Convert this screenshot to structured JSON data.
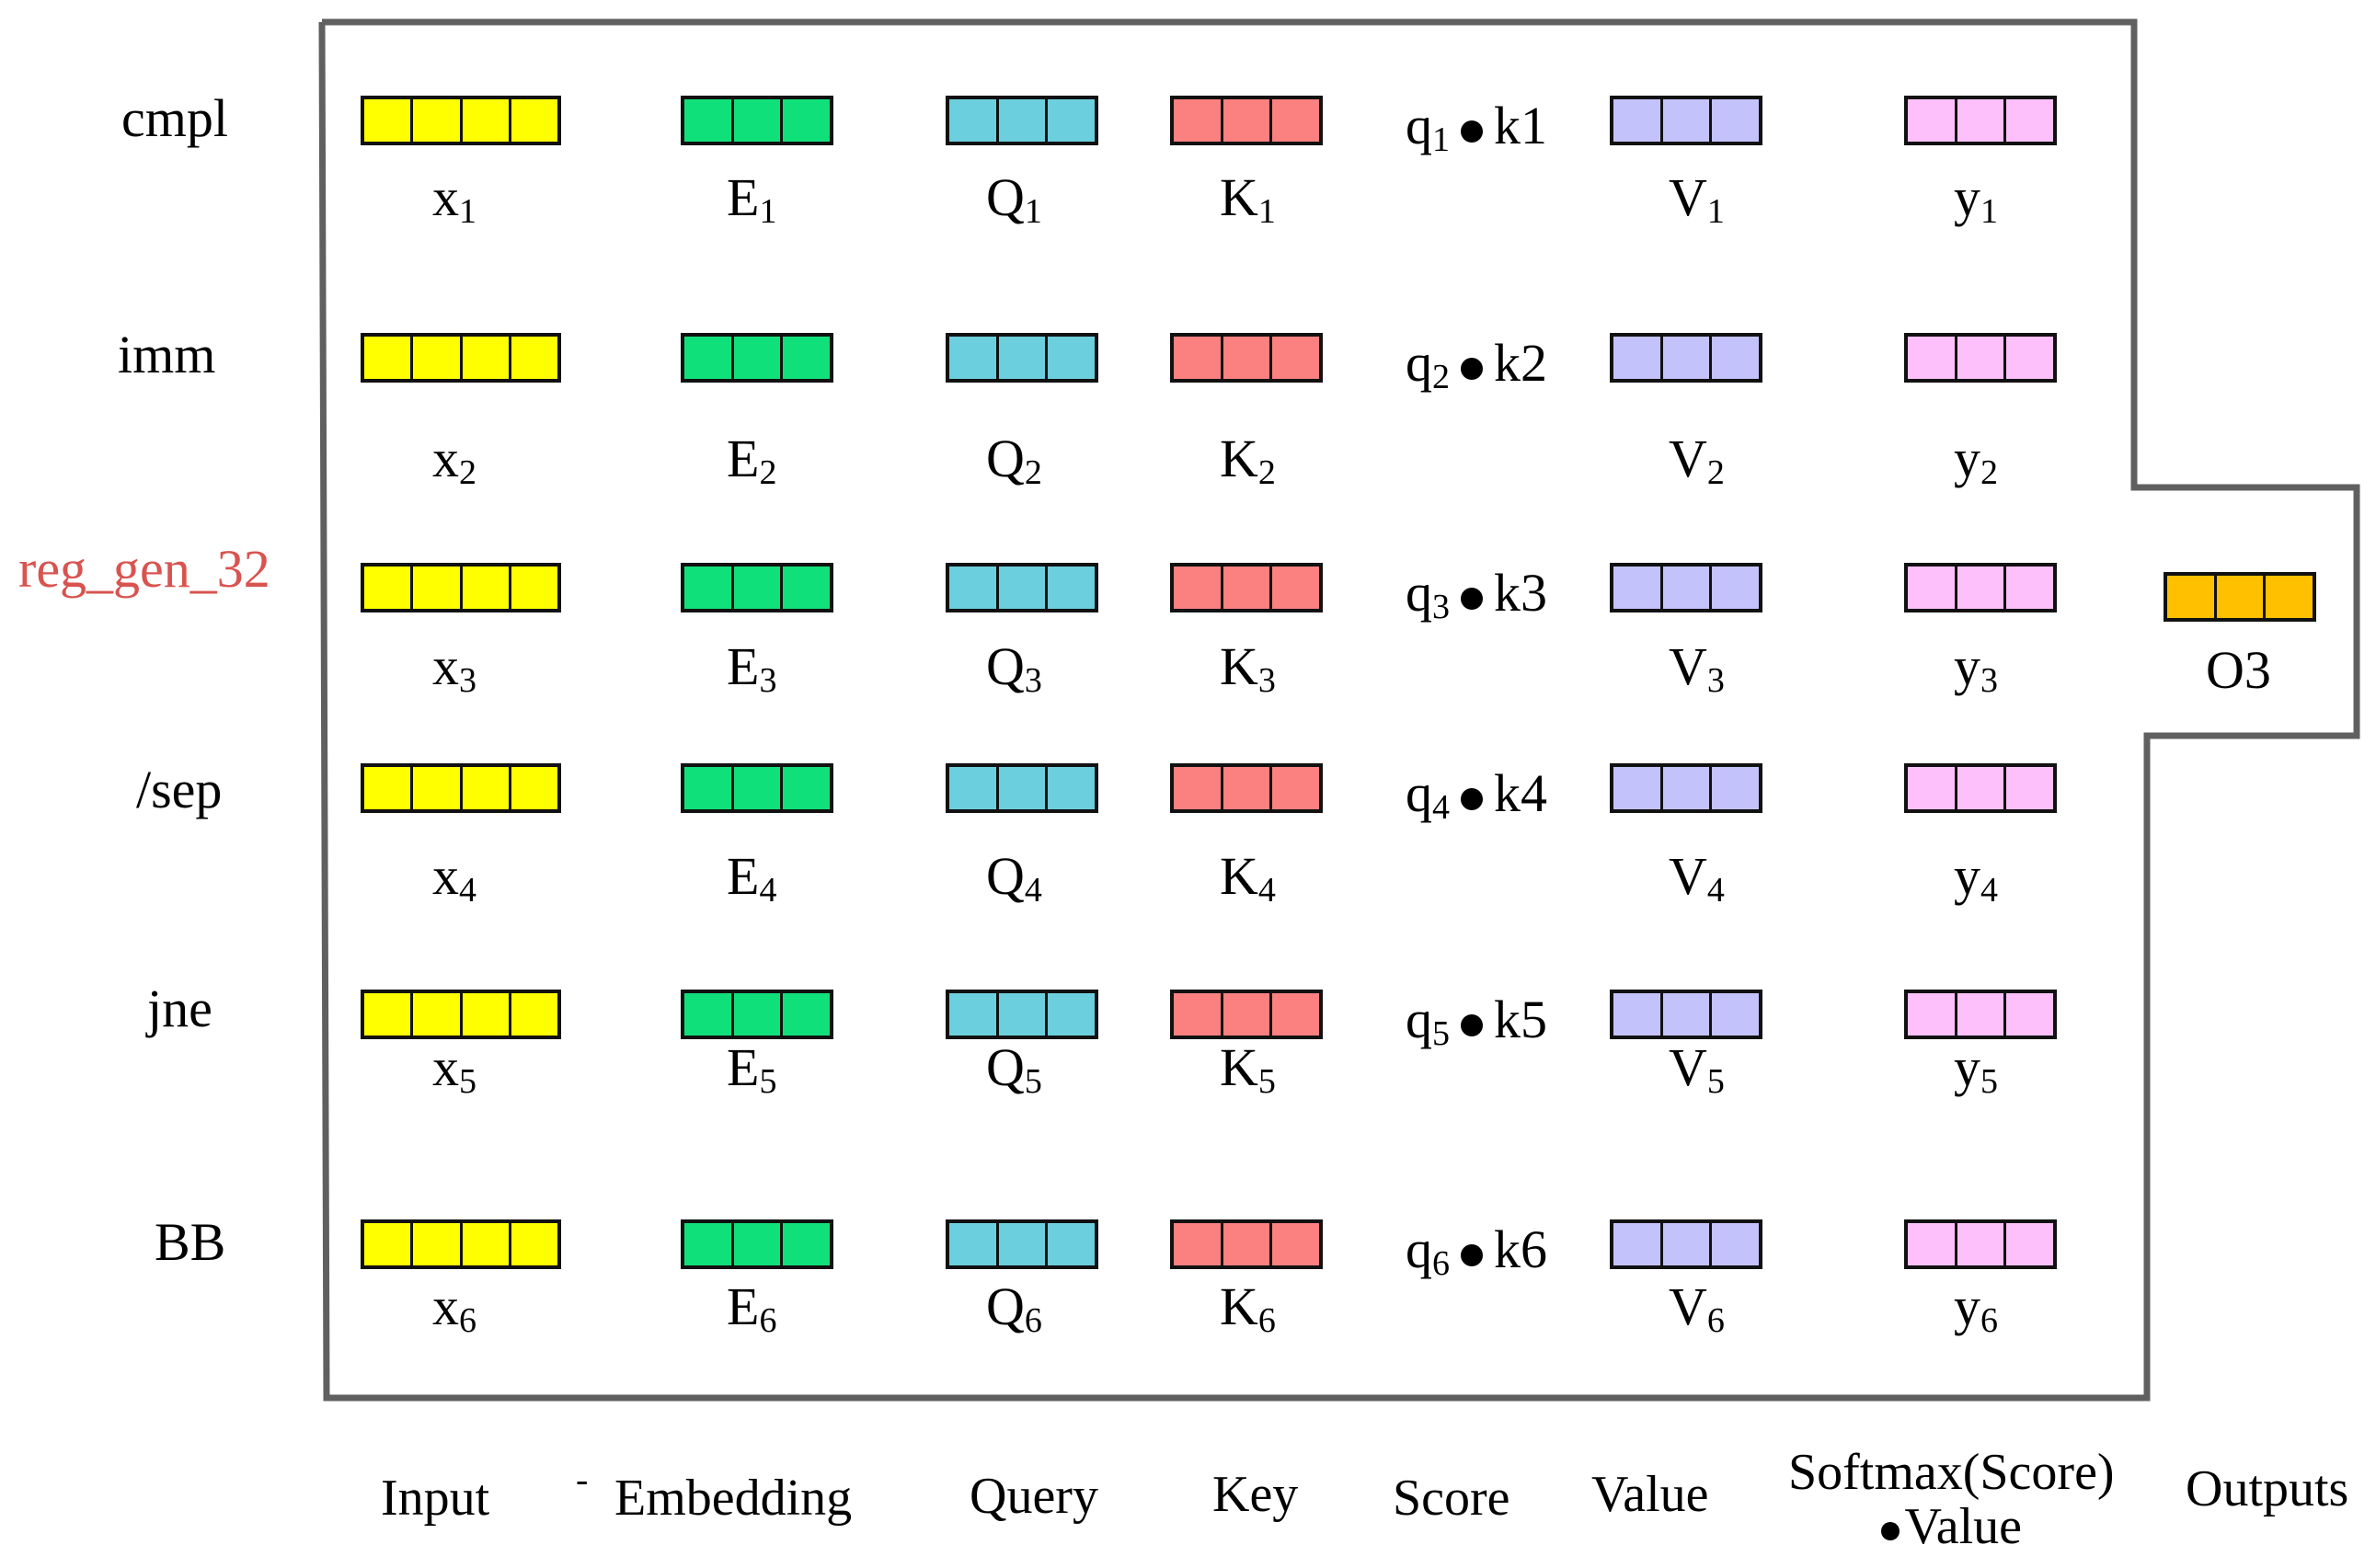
{
  "colors": {
    "input": "#ffff00",
    "embedding": "#10e07a",
    "query": "#6ccfdd",
    "key": "#fb8080",
    "value": "#c4c2fb",
    "softmax": "#fdc0fb",
    "output": "#ffc000",
    "frame": "#606060",
    "highlight_token": "#d9534f"
  },
  "tokens": [
    "cmpl",
    "imm",
    "reg_gen_32",
    "/sep",
    "jne",
    "BB"
  ],
  "highlight_token_index": 2,
  "rows": [
    {
      "x": "x",
      "xs": "1",
      "e": "E",
      "es": "1",
      "q": "Q",
      "qs": "1",
      "k": "K",
      "ks": "1",
      "sq": "q",
      "sqs": "1",
      "sk": "k1",
      "v": "V",
      "vs": "1",
      "y": "y",
      "ys": "1"
    },
    {
      "x": "x",
      "xs": "2",
      "e": "E",
      "es": "2",
      "q": "Q",
      "qs": "2",
      "k": "K",
      "ks": "2",
      "sq": "q",
      "sqs": "2",
      "sk": "k2",
      "v": "V",
      "vs": "2",
      "y": "y",
      "ys": "2"
    },
    {
      "x": "x",
      "xs": "3",
      "e": "E",
      "es": "3",
      "q": "Q",
      "qs": "3",
      "k": "K",
      "ks": "3",
      "sq": "q",
      "sqs": "3",
      "sk": "k3",
      "v": "V",
      "vs": "3",
      "y": "y",
      "ys": "3"
    },
    {
      "x": "x",
      "xs": "4",
      "e": "E",
      "es": "4",
      "q": "Q",
      "qs": "4",
      "k": "K",
      "ks": "4",
      "sq": "q",
      "sqs": "4",
      "sk": "k4",
      "v": "V",
      "vs": "4",
      "y": "y",
      "ys": "4"
    },
    {
      "x": "x",
      "xs": "5",
      "e": "E",
      "es": "5",
      "q": "Q",
      "qs": "5",
      "k": "K",
      "ks": "5",
      "sq": "q",
      "sqs": "5",
      "sk": "k5",
      "v": "V",
      "vs": "5",
      "y": "y",
      "ys": "5"
    },
    {
      "x": "x",
      "xs": "6",
      "e": "E",
      "es": "6",
      "q": "Q",
      "qs": "6",
      "k": "K",
      "ks": "6",
      "sq": "q",
      "sqs": "6",
      "sk": "k6",
      "v": "V",
      "vs": "6",
      "y": "y",
      "ys": "6"
    }
  ],
  "output": {
    "label": "O3"
  },
  "columns": {
    "input": "Input",
    "dash": "-",
    "embedding": "Embedding",
    "query": "Query",
    "key": "Key",
    "score": "Score",
    "value": "Value",
    "softmax_line1": "Softmax(Score)",
    "softmax_line2": "Value",
    "outputs": "Outputs"
  }
}
